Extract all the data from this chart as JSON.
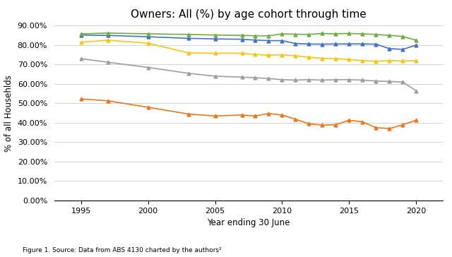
{
  "title": "Owners: All (%) by age cohort through time",
  "xlabel": "Year ending 30 June",
  "ylabel": "% of all Househlds",
  "caption": "Figure 1. Source: Data from ABS 4130 charted by the authors²",
  "ylim": [
    0.0,
    0.9
  ],
  "yticks": [
    0.0,
    0.1,
    0.2,
    0.3,
    0.4,
    0.5,
    0.6,
    0.7,
    0.8,
    0.9
  ],
  "series": {
    "25 to 34": {
      "color": "#E87722",
      "marker": "^",
      "x": [
        1995,
        1997,
        2000,
        2003,
        2005,
        2007,
        2008,
        2009,
        2010,
        2011,
        2012,
        2013,
        2014,
        2015,
        2016,
        2017,
        2018,
        2019,
        2020
      ],
      "y": [
        0.523,
        0.513,
        0.48,
        0.445,
        0.435,
        0.44,
        0.435,
        0.448,
        0.44,
        0.418,
        0.395,
        0.388,
        0.39,
        0.413,
        0.405,
        0.375,
        0.37,
        0.39,
        0.413
      ]
    },
    "35 to 44": {
      "color": "#9E9E9E",
      "marker": "^",
      "x": [
        1995,
        1997,
        2000,
        2003,
        2005,
        2007,
        2008,
        2009,
        2010,
        2011,
        2012,
        2013,
        2014,
        2015,
        2016,
        2017,
        2018,
        2019,
        2020
      ],
      "y": [
        0.73,
        0.712,
        0.685,
        0.655,
        0.64,
        0.635,
        0.632,
        0.628,
        0.622,
        0.62,
        0.622,
        0.62,
        0.622,
        0.622,
        0.62,
        0.615,
        0.613,
        0.61,
        0.565
      ]
    },
    "45 to 54": {
      "color": "#F5C518",
      "marker": "^",
      "x": [
        1995,
        1997,
        2000,
        2003,
        2005,
        2007,
        2008,
        2009,
        2010,
        2011,
        2012,
        2013,
        2014,
        2015,
        2016,
        2017,
        2018,
        2019,
        2020
      ],
      "y": [
        0.815,
        0.825,
        0.81,
        0.76,
        0.758,
        0.758,
        0.752,
        0.748,
        0.75,
        0.745,
        0.738,
        0.732,
        0.73,
        0.726,
        0.72,
        0.717,
        0.72,
        0.718,
        0.72
      ]
    },
    "55 to 64": {
      "color": "#4472C4",
      "marker": "^",
      "x": [
        1995,
        1997,
        2000,
        2003,
        2005,
        2007,
        2008,
        2009,
        2010,
        2011,
        2012,
        2013,
        2014,
        2015,
        2016,
        2017,
        2018,
        2019,
        2020
      ],
      "y": [
        0.852,
        0.85,
        0.843,
        0.835,
        0.832,
        0.83,
        0.826,
        0.823,
        0.823,
        0.808,
        0.806,
        0.805,
        0.806,
        0.806,
        0.806,
        0.805,
        0.782,
        0.778,
        0.8
      ]
    },
    "65 and over": {
      "color": "#70AD47",
      "marker": "^",
      "x": [
        1995,
        1997,
        2000,
        2003,
        2005,
        2007,
        2008,
        2009,
        2010,
        2011,
        2012,
        2013,
        2014,
        2015,
        2016,
        2017,
        2018,
        2019,
        2020
      ],
      "y": [
        0.858,
        0.862,
        0.858,
        0.855,
        0.852,
        0.85,
        0.848,
        0.848,
        0.858,
        0.856,
        0.855,
        0.86,
        0.858,
        0.86,
        0.858,
        0.855,
        0.85,
        0.845,
        0.825
      ]
    }
  }
}
